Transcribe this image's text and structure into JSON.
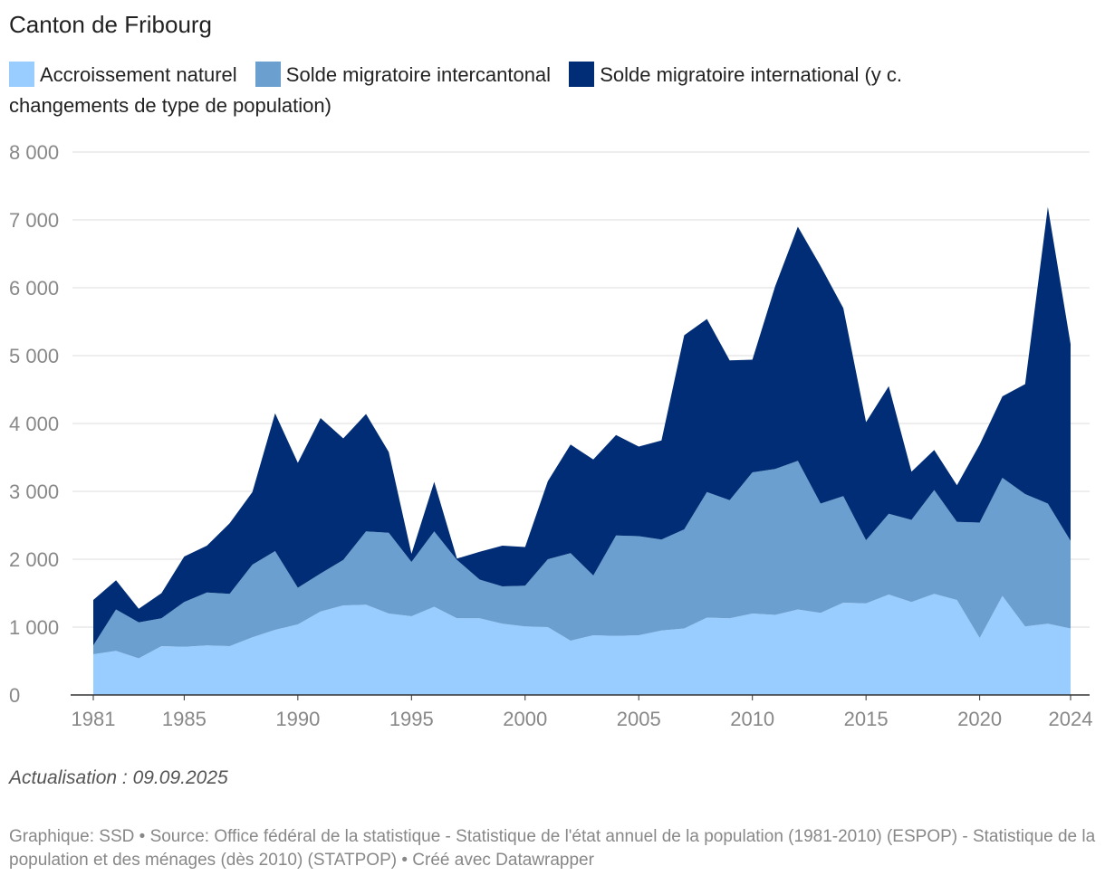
{
  "title": "Canton de Fribourg",
  "note": "Actualisation : 09.09.2025",
  "footer": "Graphique: SSD • Source: Office fédéral de la statistique - Statistique de l'état annuel de la population (1981-2010) (ESPOP) - Statistique de la population et des ménages (dès 2010) (STATPOP) • Créé avec Datawrapper",
  "legend": [
    {
      "label": "Accroissement naturel",
      "color": "#99ccff"
    },
    {
      "label": "Solde migratoire intercantonal",
      "color": "#6a9fcf"
    },
    {
      "label": "Solde migratoire international (y c. changements de type de population)",
      "color": "#002d75"
    }
  ],
  "chart_data": {
    "type": "area",
    "stacked": true,
    "title": "Canton de Fribourg",
    "xlabel": "",
    "ylabel": "",
    "ylim": [
      0,
      8000
    ],
    "xlim": [
      1981,
      2024
    ],
    "yticks": [
      0,
      1000,
      2000,
      3000,
      4000,
      5000,
      6000,
      7000,
      8000
    ],
    "ytick_labels": [
      "0",
      "1 000",
      "2 000",
      "3 000",
      "4 000",
      "5 000",
      "6 000",
      "7 000",
      "8 000"
    ],
    "xticks": [
      1981,
      1985,
      1990,
      1995,
      2000,
      2005,
      2010,
      2015,
      2020,
      2024
    ],
    "x": [
      1981,
      1982,
      1983,
      1984,
      1985,
      1986,
      1987,
      1988,
      1989,
      1990,
      1991,
      1992,
      1993,
      1994,
      1995,
      1996,
      1997,
      1998,
      1999,
      2000,
      2001,
      2002,
      2003,
      2004,
      2005,
      2006,
      2007,
      2008,
      2009,
      2010,
      2011,
      2012,
      2013,
      2014,
      2015,
      2016,
      2017,
      2018,
      2019,
      2020,
      2021,
      2022,
      2023,
      2024
    ],
    "series": [
      {
        "name": "Accroissement naturel",
        "color": "#99ccff",
        "values": [
          600,
          650,
          540,
          720,
          710,
          730,
          720,
          850,
          960,
          1040,
          1230,
          1320,
          1330,
          1200,
          1160,
          1300,
          1130,
          1130,
          1050,
          1010,
          1000,
          800,
          880,
          870,
          880,
          950,
          980,
          1140,
          1130,
          1200,
          1180,
          1260,
          1210,
          1360,
          1350,
          1480,
          1370,
          1490,
          1400,
          840,
          1460,
          1010,
          1050,
          980
        ]
      },
      {
        "name": "Solde migratoire intercantonal",
        "color": "#6a9fcf",
        "values": [
          130,
          610,
          530,
          410,
          660,
          780,
          770,
          1070,
          1160,
          540,
          560,
          670,
          1080,
          1190,
          800,
          1110,
          860,
          570,
          550,
          600,
          1000,
          1290,
          880,
          1480,
          1460,
          1340,
          1460,
          1850,
          1740,
          2080,
          2150,
          2190,
          1610,
          1570,
          930,
          1190,
          1210,
          1530,
          1150,
          1700,
          1740,
          1950,
          1770,
          1290
        ]
      },
      {
        "name": "Solde migratoire international (y c. changements de type de population)",
        "color": "#002d75",
        "values": [
          670,
          430,
          200,
          370,
          670,
          690,
          1040,
          1070,
          2030,
          1840,
          2290,
          1790,
          1730,
          1190,
          120,
          730,
          20,
          410,
          600,
          570,
          1150,
          1600,
          1710,
          1480,
          1320,
          1460,
          2860,
          2550,
          2060,
          1660,
          2690,
          3450,
          3500,
          2770,
          1740,
          1880,
          710,
          590,
          540,
          1150,
          1200,
          1620,
          4370,
          2900
        ]
      }
    ]
  }
}
